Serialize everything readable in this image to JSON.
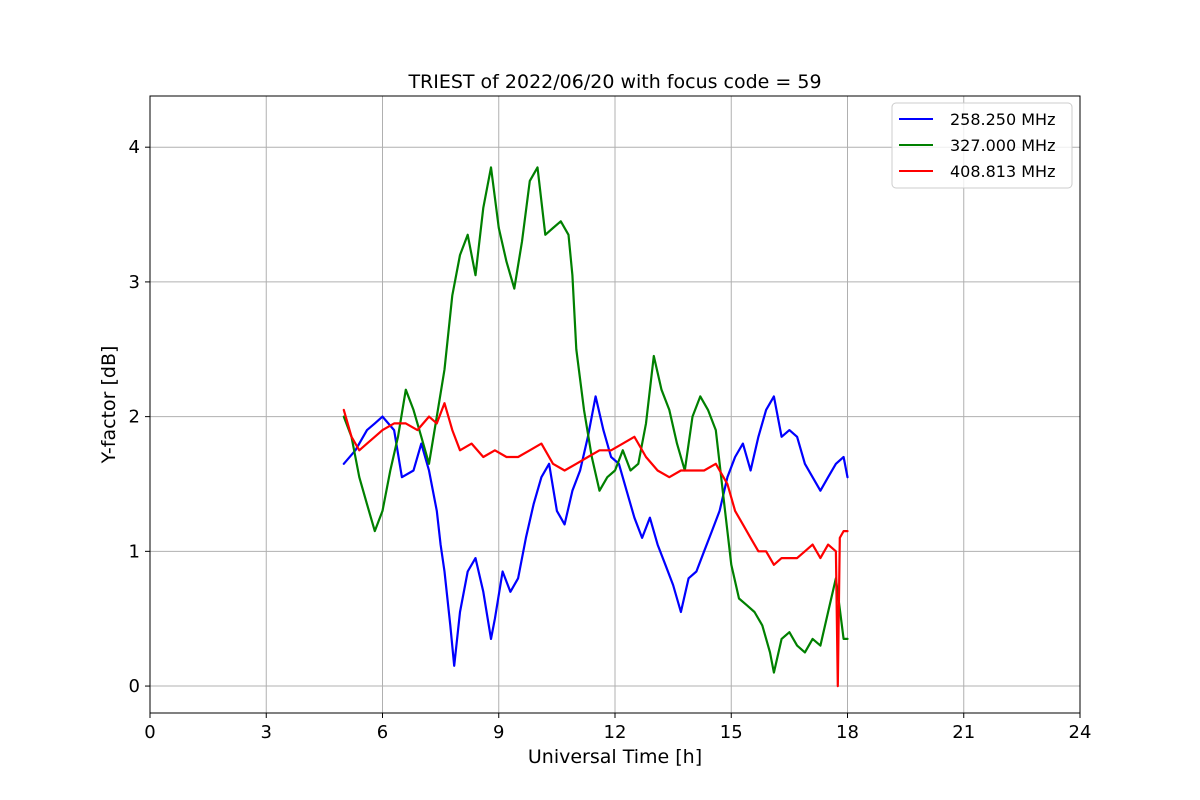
{
  "chart_data": {
    "type": "line",
    "title": "TRIEST of 2022/06/20 with focus code = 59",
    "xlabel": "Universal Time [h]",
    "ylabel": "Y-factor [dB]",
    "xlim": [
      0,
      24
    ],
    "ylim": [
      -0.2,
      4.38
    ],
    "xticks": [
      0,
      3,
      6,
      9,
      12,
      15,
      18,
      21,
      24
    ],
    "yticks": [
      0,
      1,
      2,
      3,
      4
    ],
    "grid": true,
    "legend_position": "top-right",
    "series": [
      {
        "name": "258.250 MHz",
        "color": "#0000ff",
        "x": [
          5.0,
          5.3,
          5.6,
          5.8,
          6.0,
          6.3,
          6.5,
          6.8,
          7.0,
          7.2,
          7.4,
          7.5,
          7.6,
          7.75,
          7.85,
          8.0,
          8.2,
          8.4,
          8.6,
          8.8,
          8.9,
          9.1,
          9.3,
          9.5,
          9.7,
          9.9,
          10.1,
          10.3,
          10.5,
          10.7,
          10.9,
          11.1,
          11.3,
          11.5,
          11.7,
          11.9,
          12.1,
          12.3,
          12.5,
          12.7,
          12.9,
          13.1,
          13.3,
          13.5,
          13.7,
          13.9,
          14.1,
          14.3,
          14.5,
          14.7,
          14.9,
          15.1,
          15.3,
          15.5,
          15.7,
          15.9,
          16.1,
          16.3,
          16.5,
          16.7,
          16.9,
          17.1,
          17.3,
          17.5,
          17.7,
          17.9,
          18.0
        ],
        "y": [
          1.65,
          1.75,
          1.9,
          1.95,
          2.0,
          1.9,
          1.55,
          1.6,
          1.8,
          1.6,
          1.3,
          1.05,
          0.85,
          0.45,
          0.15,
          0.55,
          0.85,
          0.95,
          0.7,
          0.35,
          0.5,
          0.85,
          0.7,
          0.8,
          1.1,
          1.35,
          1.55,
          1.65,
          1.3,
          1.2,
          1.45,
          1.6,
          1.85,
          2.15,
          1.9,
          1.7,
          1.65,
          1.45,
          1.25,
          1.1,
          1.25,
          1.05,
          0.9,
          0.75,
          0.55,
          0.8,
          0.85,
          1.0,
          1.15,
          1.3,
          1.55,
          1.7,
          1.8,
          1.6,
          1.85,
          2.05,
          2.15,
          1.85,
          1.9,
          1.85,
          1.65,
          1.55,
          1.45,
          1.55,
          1.65,
          1.7,
          1.55
        ]
      },
      {
        "name": "327.000 MHz",
        "color": "#008000",
        "x": [
          5.0,
          5.2,
          5.4,
          5.6,
          5.8,
          6.0,
          6.2,
          6.4,
          6.6,
          6.8,
          7.0,
          7.2,
          7.4,
          7.6,
          7.8,
          8.0,
          8.2,
          8.4,
          8.6,
          8.8,
          9.0,
          9.2,
          9.4,
          9.6,
          9.8,
          10.0,
          10.2,
          10.4,
          10.6,
          10.8,
          10.9,
          11.0,
          11.2,
          11.4,
          11.6,
          11.8,
          12.0,
          12.2,
          12.4,
          12.6,
          12.8,
          13.0,
          13.2,
          13.4,
          13.6,
          13.8,
          14.0,
          14.2,
          14.4,
          14.6,
          14.8,
          15.0,
          15.2,
          15.4,
          15.6,
          15.8,
          16.0,
          16.1,
          16.3,
          16.5,
          16.7,
          16.9,
          17.1,
          17.3,
          17.5,
          17.7,
          17.9,
          18.0
        ],
        "y": [
          2.0,
          1.85,
          1.55,
          1.35,
          1.15,
          1.3,
          1.6,
          1.85,
          2.2,
          2.05,
          1.85,
          1.65,
          2.0,
          2.35,
          2.9,
          3.2,
          3.35,
          3.05,
          3.55,
          3.85,
          3.4,
          3.15,
          2.95,
          3.3,
          3.75,
          3.85,
          3.35,
          3.4,
          3.45,
          3.35,
          3.05,
          2.5,
          2.05,
          1.7,
          1.45,
          1.55,
          1.6,
          1.75,
          1.6,
          1.65,
          1.95,
          2.45,
          2.2,
          2.05,
          1.8,
          1.6,
          2.0,
          2.15,
          2.05,
          1.9,
          1.4,
          0.9,
          0.65,
          0.6,
          0.55,
          0.45,
          0.25,
          0.1,
          0.35,
          0.4,
          0.3,
          0.25,
          0.35,
          0.3,
          0.55,
          0.8,
          0.35,
          0.35
        ]
      },
      {
        "name": "408.813 MHz",
        "color": "#ff0000",
        "x": [
          5.0,
          5.2,
          5.4,
          5.6,
          5.8,
          6.0,
          6.3,
          6.6,
          6.9,
          7.2,
          7.4,
          7.6,
          7.8,
          8.0,
          8.3,
          8.6,
          8.9,
          9.2,
          9.5,
          9.8,
          10.1,
          10.4,
          10.7,
          11.0,
          11.3,
          11.6,
          11.9,
          12.2,
          12.5,
          12.8,
          13.1,
          13.4,
          13.7,
          14.0,
          14.3,
          14.6,
          14.9,
          15.1,
          15.3,
          15.5,
          15.7,
          15.9,
          16.1,
          16.3,
          16.5,
          16.7,
          16.9,
          17.1,
          17.3,
          17.5,
          17.7,
          17.75,
          17.8,
          17.9,
          18.0
        ],
        "y": [
          2.05,
          1.85,
          1.75,
          1.8,
          1.85,
          1.9,
          1.95,
          1.95,
          1.9,
          2.0,
          1.95,
          2.1,
          1.9,
          1.75,
          1.8,
          1.7,
          1.75,
          1.7,
          1.7,
          1.75,
          1.8,
          1.65,
          1.6,
          1.65,
          1.7,
          1.75,
          1.75,
          1.8,
          1.85,
          1.7,
          1.6,
          1.55,
          1.6,
          1.6,
          1.6,
          1.65,
          1.5,
          1.3,
          1.2,
          1.1,
          1.0,
          1.0,
          0.9,
          0.95,
          0.95,
          0.95,
          1.0,
          1.05,
          0.95,
          1.05,
          1.0,
          0.0,
          1.1,
          1.15,
          1.15
        ]
      }
    ]
  }
}
